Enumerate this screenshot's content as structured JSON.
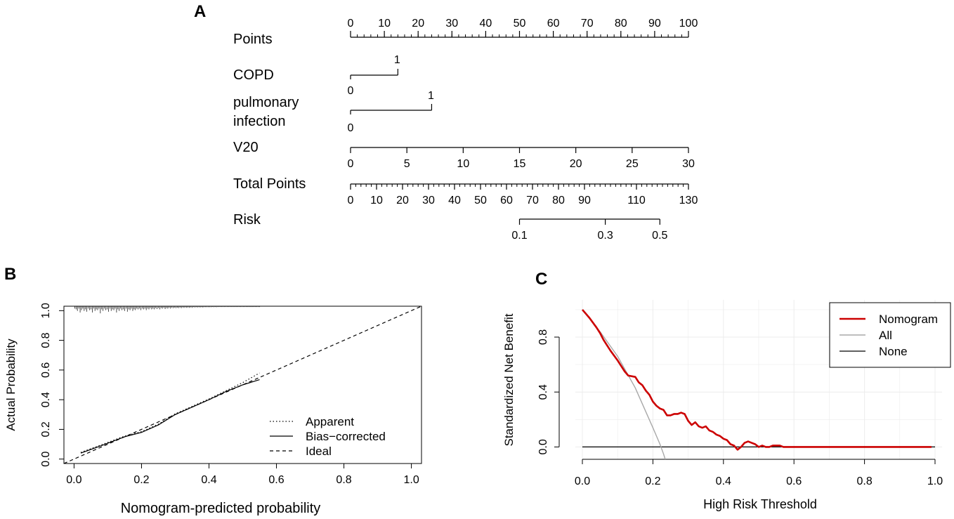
{
  "panels": {
    "a": "A",
    "b": "B",
    "c": "C"
  },
  "colors": {
    "nomogram": "#cc0000",
    "all": "#a8a8a8",
    "none": "#000000",
    "grid": "#ececec"
  },
  "chart_data": [
    {
      "type": "nomogram",
      "panel": "A",
      "rows": [
        {
          "label": "Points",
          "scale": [
            0,
            100
          ],
          "ticks": [
            0,
            10,
            20,
            30,
            40,
            50,
            60,
            70,
            80,
            90,
            100
          ],
          "minor_step": 2
        },
        {
          "label": "COPD",
          "points": {
            "0": 0,
            "1": 14
          },
          "levels": [
            "0",
            "1"
          ]
        },
        {
          "label_lines": [
            "pulmonary",
            "infection"
          ],
          "points": {
            "0": 0,
            "1": 24
          },
          "levels": [
            "0",
            "1"
          ]
        },
        {
          "label": "V20",
          "points_range": [
            0,
            100
          ],
          "values": [
            0,
            5,
            10,
            15,
            20,
            25,
            30
          ]
        },
        {
          "label": "Total Points",
          "scale": [
            0,
            130
          ],
          "ticks": [
            0,
            10,
            20,
            30,
            40,
            50,
            60,
            70,
            80,
            90,
            110,
            130
          ],
          "minor_step": 2
        },
        {
          "label": "Risk",
          "ticks": [
            {
              "label": "0.1",
              "total_points": 65
            },
            {
              "label": "0.3",
              "total_points": 98
            },
            {
              "label": "0.5",
              "total_points": 119
            }
          ],
          "range_total_points": [
            65,
            119
          ]
        }
      ]
    },
    {
      "type": "line",
      "panel": "B",
      "title": "",
      "xlabel": "Nomogram-predicted probability",
      "ylabel": "Actual Probability",
      "xlim": [
        -0.03,
        1.03
      ],
      "ylim": [
        -0.03,
        1.03
      ],
      "xticks": [
        "0.0",
        "0.2",
        "0.4",
        "0.6",
        "0.8",
        "1.0"
      ],
      "yticks": [
        "0.0",
        "0.2",
        "0.4",
        "0.6",
        "0.8",
        "1.0"
      ],
      "legend_position": "bottom-right",
      "series": [
        {
          "name": "Apparent",
          "style": "dotted",
          "x": [
            0.02,
            0.08,
            0.15,
            0.2,
            0.25,
            0.3,
            0.35,
            0.4,
            0.45,
            0.5,
            0.55
          ],
          "y": [
            0.045,
            0.095,
            0.155,
            0.185,
            0.235,
            0.305,
            0.355,
            0.405,
            0.46,
            0.515,
            0.58
          ]
        },
        {
          "name": "Bias−corrected",
          "style": "solid",
          "x": [
            0.02,
            0.08,
            0.15,
            0.2,
            0.25,
            0.3,
            0.35,
            0.4,
            0.45,
            0.5,
            0.55
          ],
          "y": [
            0.04,
            0.09,
            0.15,
            0.18,
            0.23,
            0.3,
            0.35,
            0.4,
            0.455,
            0.5,
            0.535
          ]
        },
        {
          "name": "Ideal",
          "style": "dashed",
          "x": [
            -0.03,
            1.03
          ],
          "y": [
            -0.03,
            1.03
          ]
        }
      ],
      "rug": {
        "position": "top",
        "x": [
          0.002,
          0.006,
          0.01,
          0.014,
          0.018,
          0.022,
          0.026,
          0.03,
          0.034,
          0.038,
          0.042,
          0.046,
          0.05,
          0.054,
          0.058,
          0.062,
          0.066,
          0.07,
          0.074,
          0.078,
          0.082,
          0.086,
          0.09,
          0.094,
          0.098,
          0.102,
          0.106,
          0.11,
          0.114,
          0.118,
          0.122,
          0.126,
          0.13,
          0.134,
          0.138,
          0.142,
          0.146,
          0.15,
          0.154,
          0.158,
          0.162,
          0.166,
          0.17,
          0.174,
          0.178,
          0.182,
          0.186,
          0.19,
          0.194,
          0.198,
          0.202,
          0.206,
          0.21,
          0.214,
          0.218,
          0.222,
          0.226,
          0.23,
          0.234,
          0.238,
          0.242,
          0.246,
          0.25,
          0.254,
          0.258,
          0.262,
          0.266,
          0.27,
          0.274,
          0.278,
          0.282,
          0.286,
          0.29,
          0.294,
          0.298,
          0.302,
          0.306,
          0.31,
          0.314,
          0.318,
          0.322,
          0.326,
          0.33,
          0.334,
          0.338,
          0.342,
          0.346,
          0.35,
          0.354,
          0.358,
          0.362,
          0.366,
          0.37,
          0.374,
          0.378,
          0.382,
          0.386,
          0.39,
          0.394,
          0.398,
          0.402,
          0.406,
          0.41,
          0.414,
          0.418,
          0.422,
          0.426,
          0.43,
          0.434,
          0.438,
          0.442,
          0.446,
          0.45,
          0.454,
          0.458,
          0.462,
          0.466,
          0.47,
          0.474,
          0.478,
          0.482,
          0.486,
          0.49,
          0.494,
          0.498,
          0.502,
          0.506,
          0.51,
          0.514,
          0.518,
          0.522,
          0.526,
          0.53,
          0.534,
          0.538,
          0.542,
          0.546,
          0.55
        ],
        "length": [
          0.015,
          0.02,
          0.03,
          0.015,
          0.04,
          0.025,
          0.015,
          0.03,
          0.02,
          0.035,
          0.015,
          0.025,
          0.02,
          0.04,
          0.015,
          0.03,
          0.02,
          0.025,
          0.015,
          0.045,
          0.02,
          0.03,
          0.015,
          0.025,
          0.02,
          0.035,
          0.015,
          0.03,
          0.02,
          0.025,
          0.015,
          0.04,
          0.02,
          0.03,
          0.015,
          0.025,
          0.02,
          0.03,
          0.015,
          0.035,
          0.02,
          0.025,
          0.015,
          0.03,
          0.02,
          0.025,
          0.015,
          0.02,
          0.015,
          0.025,
          0.015,
          0.02,
          0.015,
          0.025,
          0.015,
          0.02,
          0.012,
          0.02,
          0.015,
          0.02,
          0.012,
          0.018,
          0.012,
          0.02,
          0.012,
          0.015,
          0.01,
          0.018,
          0.012,
          0.015,
          0.01,
          0.015,
          0.01,
          0.012,
          0.01,
          0.012,
          0.01,
          0.012,
          0.008,
          0.012,
          0.008,
          0.01,
          0.008,
          0.01,
          0.008,
          0.01,
          0.008,
          0.01,
          0.006,
          0.008,
          0.006,
          0.008,
          0.006,
          0.008,
          0.006,
          0.008,
          0.006,
          0.006,
          0.006,
          0.006,
          0.006,
          0.006,
          0.005,
          0.006,
          0.005,
          0.006,
          0.005,
          0.005,
          0.005,
          0.005,
          0.005,
          0.005,
          0.005,
          0.005,
          0.005,
          0.005,
          0.005,
          0.005,
          0.005,
          0.005,
          0.005,
          0.005,
          0.005,
          0.005,
          0.005,
          0.005,
          0.005,
          0.005,
          0.005,
          0.005,
          0.005,
          0.005,
          0.005,
          0.005,
          0.005,
          0.005,
          0.005,
          0.005
        ]
      }
    },
    {
      "type": "line",
      "panel": "C",
      "title": "",
      "xlabel": "High Risk Threshold",
      "ylabel": "Standardized Net Benefit",
      "xlim": [
        0,
        1
      ],
      "ylim": [
        -0.09,
        1.02
      ],
      "xticks": [
        "0.0",
        "0.2",
        "0.4",
        "0.6",
        "0.8",
        "1.0"
      ],
      "yticks": [
        "0.0",
        "0.4",
        "0.8"
      ],
      "grid": true,
      "legend_position": "top-right",
      "series": [
        {
          "name": "Nomogram",
          "x": [
            0,
            0.02,
            0.04,
            0.05,
            0.06,
            0.08,
            0.1,
            0.12,
            0.13,
            0.15,
            0.16,
            0.17,
            0.18,
            0.19,
            0.2,
            0.21,
            0.22,
            0.23,
            0.24,
            0.25,
            0.26,
            0.27,
            0.28,
            0.29,
            0.3,
            0.31,
            0.32,
            0.33,
            0.34,
            0.35,
            0.36,
            0.37,
            0.38,
            0.39,
            0.4,
            0.41,
            0.42,
            0.43,
            0.44,
            0.45,
            0.46,
            0.47,
            0.48,
            0.49,
            0.5,
            0.51,
            0.52,
            0.53,
            0.54,
            0.55,
            0.56,
            0.57,
            0.6,
            0.7,
            0.8,
            0.9,
            0.99
          ],
          "y": [
            1.0,
            0.94,
            0.87,
            0.83,
            0.78,
            0.7,
            0.63,
            0.55,
            0.52,
            0.51,
            0.47,
            0.45,
            0.41,
            0.38,
            0.33,
            0.3,
            0.28,
            0.27,
            0.23,
            0.23,
            0.24,
            0.24,
            0.25,
            0.24,
            0.19,
            0.16,
            0.18,
            0.15,
            0.14,
            0.15,
            0.12,
            0.11,
            0.09,
            0.08,
            0.06,
            0.05,
            0.02,
            0.01,
            -0.02,
            0.0,
            0.03,
            0.04,
            0.03,
            0.02,
            0.0,
            0.01,
            0.0,
            0.0,
            0.01,
            0.01,
            0.01,
            0.0,
            0.0,
            0.0,
            0.0,
            0.0,
            0.0
          ]
        },
        {
          "name": "All",
          "x": [
            0,
            0.05,
            0.1,
            0.15,
            0.2,
            0.21,
            0.22,
            0.23,
            0.235
          ],
          "y": [
            1.0,
            0.84,
            0.66,
            0.43,
            0.14,
            0.08,
            0.02,
            -0.05,
            -0.09
          ]
        },
        {
          "name": "None",
          "x": [
            0,
            1
          ],
          "y": [
            0,
            0
          ]
        }
      ]
    }
  ]
}
